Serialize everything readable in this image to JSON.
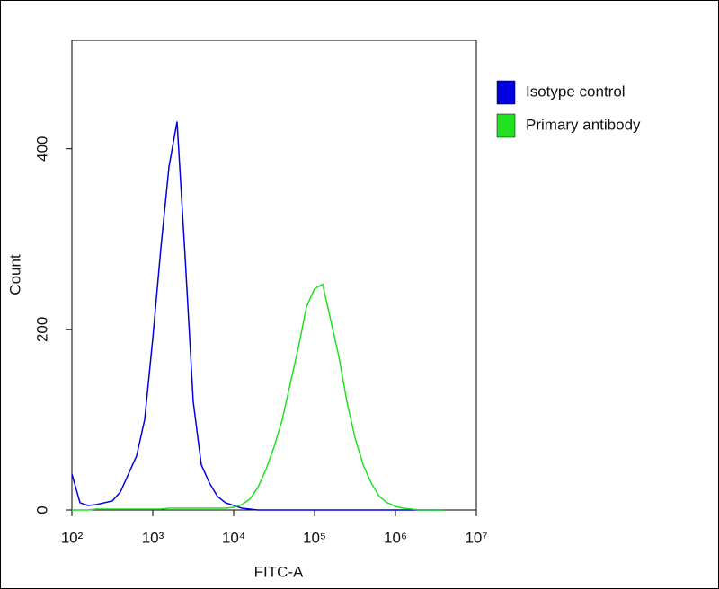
{
  "chart_data": {
    "type": "line",
    "xlabel": "FITC-A",
    "ylabel": "Count",
    "xscale": "log",
    "xlim": [
      100,
      10000000
    ],
    "ylim": [
      0,
      520
    ],
    "xticks": [
      {
        "value": 100,
        "label": "10²"
      },
      {
        "value": 1000,
        "label": "10³"
      },
      {
        "value": 10000,
        "label": "10⁴"
      },
      {
        "value": 100000,
        "label": "10⁵"
      },
      {
        "value": 1000000,
        "label": "10⁶"
      },
      {
        "value": 10000000,
        "label": "10⁷"
      }
    ],
    "yticks": [
      0,
      200,
      400
    ],
    "legend": "upper right",
    "x": [
      100,
      126,
      158,
      200,
      251,
      316,
      398,
      501,
      631,
      794,
      1000,
      1259,
      1585,
      1995,
      2512,
      3162,
      3981,
      5012,
      6310,
      7943,
      10000,
      12589,
      15849,
      19953,
      25119,
      31623,
      39811,
      50119,
      63096,
      79433,
      100000,
      125893,
      158489,
      199526,
      251189,
      316228,
      398107,
      501187,
      630957,
      794328,
      1000000,
      1258925,
      1584893,
      1995262,
      2511886,
      3162278,
      3981072
    ],
    "series": [
      {
        "name": "Isotype control",
        "color": "#0000e0",
        "values": [
          40,
          8,
          5,
          6,
          8,
          10,
          20,
          40,
          60,
          100,
          190,
          290,
          380,
          430,
          280,
          120,
          50,
          30,
          15,
          8,
          5,
          2,
          1,
          0,
          0,
          0,
          0,
          0,
          0,
          0,
          0,
          0,
          0,
          0,
          0,
          0,
          0,
          0,
          0,
          0,
          0,
          0,
          0,
          0,
          0,
          0,
          0
        ]
      },
      {
        "name": "Primary antibody",
        "color": "#22e022",
        "values": [
          0,
          0,
          0,
          1,
          1,
          1,
          1,
          1,
          1,
          1,
          1,
          1,
          2,
          2,
          2,
          2,
          2,
          2,
          2,
          2,
          3,
          6,
          12,
          25,
          45,
          70,
          100,
          140,
          180,
          225,
          245,
          250,
          210,
          170,
          120,
          80,
          50,
          30,
          15,
          8,
          4,
          2,
          1,
          0,
          0,
          0,
          0
        ]
      }
    ]
  }
}
